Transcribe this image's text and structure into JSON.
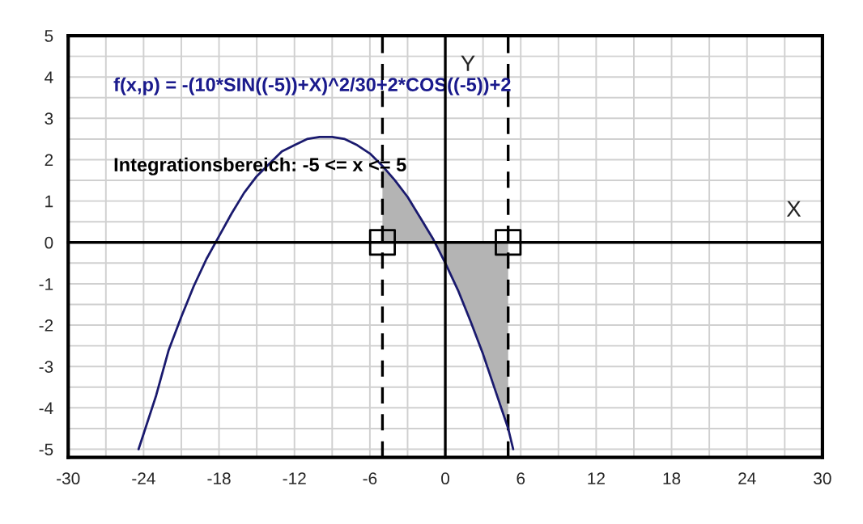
{
  "chart_data": {
    "type": "line",
    "xlabel": "X",
    "ylabel": "Y",
    "annotations": [
      "f(x,p) = -(10*SIN((-5))+X)^2/30+2*COS((-5))+2",
      "Integrationsbereich: -5 <= x <= 5"
    ],
    "series": [
      {
        "type": "area",
        "color": "#b4b4b4",
        "x": [
          -5,
          -4,
          -3,
          -2,
          -1,
          0,
          1,
          2,
          3,
          4,
          5
        ],
        "values": [
          1.85,
          1.5,
          1.1,
          0.6,
          0.1,
          -0.5,
          -1.15,
          -1.9,
          -2.7,
          -3.6,
          -4.5
        ]
      },
      {
        "color": "#1a1a6e",
        "x": [
          -24.4,
          -23,
          -22,
          -21,
          -20,
          -19,
          -18,
          -17,
          -16,
          -15,
          -14,
          -13,
          -12,
          -11,
          -10,
          -9,
          -8,
          -7,
          -6,
          -5,
          -4,
          -3,
          -2,
          -1,
          0,
          1,
          2,
          3,
          4,
          5,
          5.4
        ],
        "values": [
          -5,
          -3.7,
          -2.6,
          -1.8,
          -1.05,
          -0.4,
          0.15,
          0.7,
          1.2,
          1.6,
          1.9,
          2.2,
          2.35,
          2.5,
          2.55,
          2.55,
          2.5,
          2.35,
          2.15,
          1.85,
          1.5,
          1.1,
          0.6,
          0.1,
          -0.5,
          -1.15,
          -1.9,
          -2.7,
          -3.6,
          -4.5,
          -5
        ]
      },
      {
        "type": "scatter",
        "color": "#000000",
        "marker": "square",
        "x": [
          -5,
          5
        ],
        "values": [
          0,
          0
        ]
      }
    ],
    "ref_lines": [
      {
        "axis": "x",
        "value": -5,
        "color": "#000000",
        "line_style": "dashed"
      },
      {
        "axis": "x",
        "value": 5,
        "color": "#000000",
        "line_style": "dashed"
      }
    ],
    "xlim": [
      -30,
      30
    ],
    "ylim": [
      -5.2,
      5
    ],
    "xticks": [
      -30,
      {
        "value": -27,
        "label": null
      },
      -24,
      {
        "value": -21,
        "label": null
      },
      -18,
      {
        "value": -15,
        "label": null
      },
      -12,
      {
        "value": -9,
        "label": null
      },
      -6,
      {
        "value": -3,
        "label": null
      },
      0,
      {
        "value": 3,
        "label": null
      },
      6,
      {
        "value": 9,
        "label": null
      },
      12,
      {
        "value": 15,
        "label": null
      },
      18,
      {
        "value": 21,
        "label": null
      },
      24,
      {
        "value": 27,
        "label": null
      },
      30
    ],
    "yticks": [
      -5,
      {
        "value": -4.5,
        "label": null
      },
      -4,
      {
        "value": -3.5,
        "label": null
      },
      -3,
      {
        "value": -2.5,
        "label": null
      },
      -2,
      {
        "value": -1.5,
        "label": null
      },
      -1,
      {
        "value": -0.5,
        "label": null
      },
      0,
      {
        "value": 0.5,
        "label": null
      },
      1,
      {
        "value": 1.5,
        "label": null
      },
      2,
      {
        "value": 2.5,
        "label": null
      },
      3,
      {
        "value": 3.5,
        "label": null
      },
      4,
      {
        "value": 4.5,
        "label": null
      },
      5
    ],
    "grid": true
  }
}
